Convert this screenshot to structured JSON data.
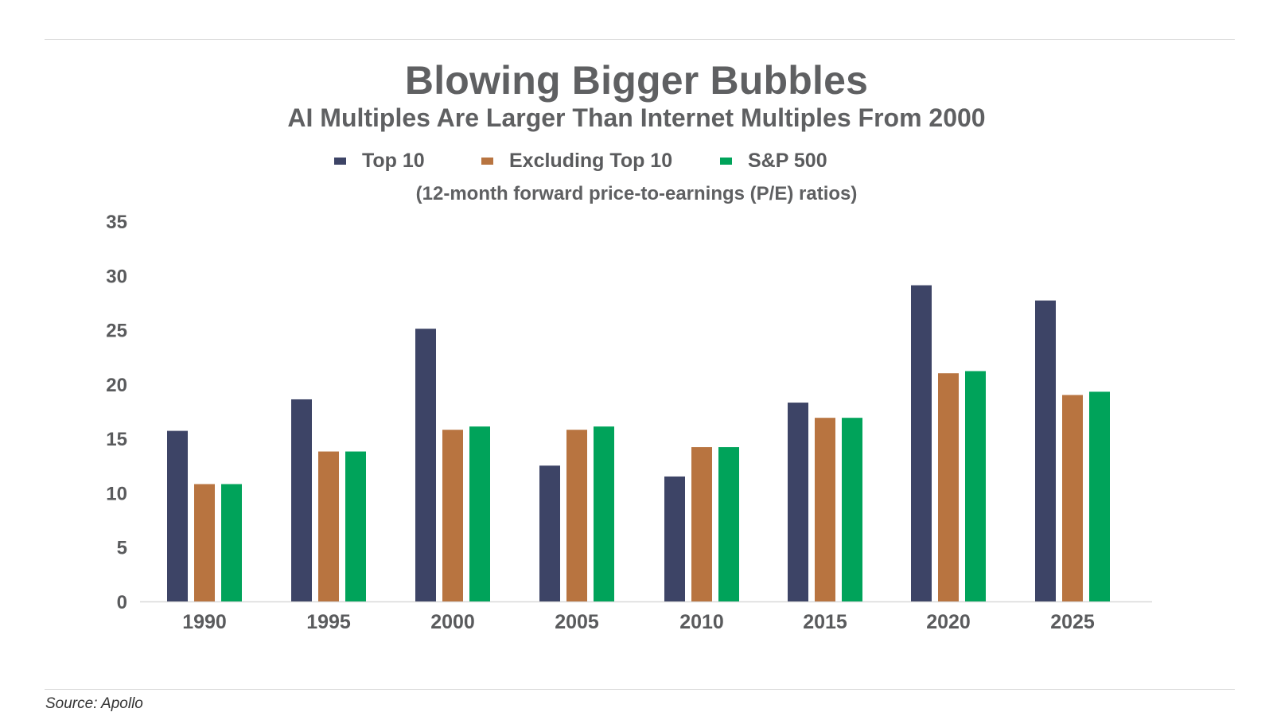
{
  "chart_data": {
    "type": "bar",
    "title": "Blowing Bigger Bubbles",
    "subtitle": "AI Multiples Are Larger Than Internet Multiples From 2000",
    "units_note": "(12-month forward price-to-earnings (P/E) ratios)",
    "categories": [
      "1990",
      "1995",
      "2000",
      "2005",
      "2010",
      "2015",
      "2020",
      "2025"
    ],
    "series": [
      {
        "name": "Top 10",
        "color": "#3d4466",
        "values": [
          15.7,
          18.6,
          25.1,
          12.5,
          11.5,
          18.3,
          29.1,
          27.7
        ]
      },
      {
        "name": "Excluding Top 10",
        "color": "#b87440",
        "values": [
          10.8,
          13.8,
          15.8,
          15.8,
          14.2,
          16.9,
          21.0,
          19.0
        ]
      },
      {
        "name": "S&P 500",
        "color": "#00a35a",
        "values": [
          10.8,
          13.8,
          16.1,
          16.1,
          14.2,
          16.9,
          21.2,
          19.3
        ]
      }
    ],
    "ylim": [
      0,
      35
    ],
    "yticks": [
      "0",
      "5",
      "10",
      "15",
      "20",
      "25",
      "30",
      "35"
    ],
    "xlabel": "",
    "ylabel": "",
    "grid": false,
    "legend_position": "top-center"
  },
  "source": "Source: Apollo"
}
